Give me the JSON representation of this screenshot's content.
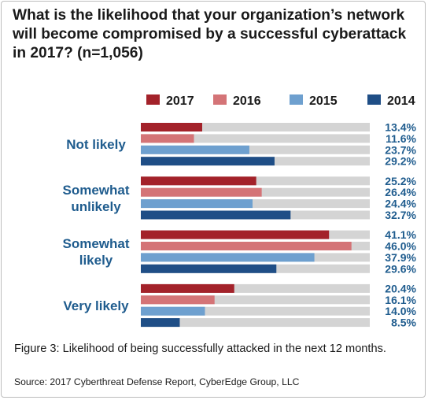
{
  "chart_data": {
    "type": "bar",
    "orientation": "horizontal",
    "title": "What is the likelihood that your organization’s network will become compromised by a successful cyberattack in 2017? (n=1,056)",
    "categories": [
      {
        "label_lines": [
          "Not likely"
        ]
      },
      {
        "label_lines": [
          "Somewhat",
          "unlikely"
        ]
      },
      {
        "label_lines": [
          "Somewhat",
          "likely"
        ]
      },
      {
        "label_lines": [
          "Very likely"
        ]
      }
    ],
    "series": [
      {
        "name": "2017",
        "color": "#a3222a",
        "values": [
          13.4,
          25.2,
          41.1,
          20.4
        ]
      },
      {
        "name": "2016",
        "color": "#d47477",
        "values": [
          11.6,
          26.4,
          46.0,
          16.1
        ]
      },
      {
        "name": "2015",
        "color": "#6ea0cf",
        "values": [
          23.7,
          24.4,
          37.9,
          14.0
        ]
      },
      {
        "name": "2014",
        "color": "#1f4e86",
        "values": [
          29.2,
          32.7,
          29.6,
          8.5
        ]
      }
    ],
    "value_suffix": "%",
    "xlim": [
      0,
      50
    ],
    "track_color": "#d4d4d4",
    "label_color": "#1f5c8e",
    "legend_position": "top",
    "grid": false
  },
  "caption": "Figure 3: Likelihood of being successfully attacked in the next 12 months.",
  "source": "Source: 2017 Cyberthreat Defense Report, CyberEdge Group, LLC"
}
